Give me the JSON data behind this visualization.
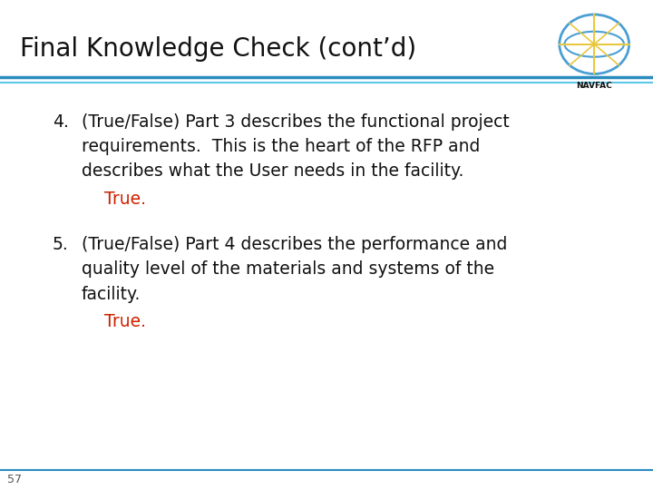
{
  "title": "Final Knowledge Check (cont’d)",
  "title_color": "#111111",
  "title_fontsize": 20,
  "background_color": "#ffffff",
  "header_line_color1": "#2a8bbf",
  "header_line_color2": "#5bc8e8",
  "footer_line_color": "#2a8bbf",
  "slide_number": "57",
  "slide_number_color": "#555555",
  "slide_number_fontsize": 9,
  "items": [
    {
      "number": "4.",
      "question": "(True/False) Part 3 describes the functional project\nrequirements.  This is the heart of the RFP and\ndescribes what the User needs in the facility.",
      "answer": "True.",
      "question_color": "#111111",
      "answer_color": "#cc2200",
      "question_fontsize": 13.5,
      "answer_fontsize": 13.5
    },
    {
      "number": "5.",
      "question": "(True/False) Part 4 describes the performance and\nquality level of the materials and systems of the\nfacility.",
      "answer": "True.",
      "question_color": "#111111",
      "answer_color": "#cc2200",
      "question_fontsize": 13.5,
      "answer_fontsize": 13.5
    }
  ],
  "arc1_color": "#c8d8e8",
  "arc2_color": "#d8e4ee",
  "navfac_bg": "#1a4e8a",
  "navfac_circle": "#4a9fd4",
  "navfac_lines": "#e8c840",
  "navfac_text": "#1a4e8a"
}
